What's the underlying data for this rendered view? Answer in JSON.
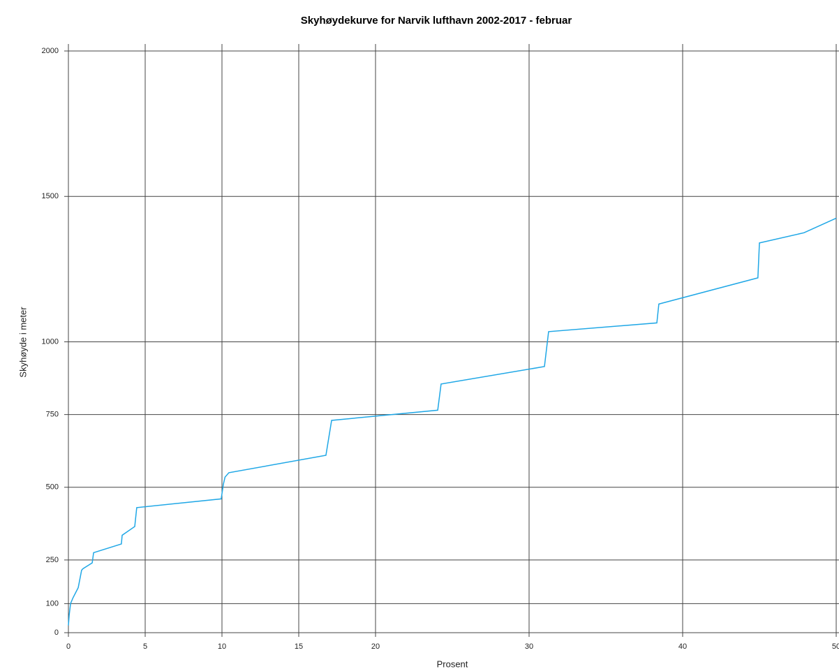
{
  "chart_data": {
    "type": "line",
    "title": "Skyhøydekurve for Narvik lufthavn 2002-2017 - februar",
    "x_label": "Prosent",
    "y_label": "Skyhøyde i meter",
    "xlim": [
      0,
      50
    ],
    "ylim": [
      0,
      2000
    ],
    "xticks": [
      0,
      5,
      10,
      15,
      20,
      30,
      40,
      50
    ],
    "yticks": [
      0,
      100,
      250,
      500,
      750,
      1000,
      1500,
      2000
    ],
    "grid": true,
    "series": [
      {
        "color": "#1fa7e6",
        "x": [
          0,
          0.05,
          0.14,
          0.3,
          0.64,
          0.86,
          0.95,
          1.55,
          1.64,
          3.45,
          3.5,
          4.32,
          4.45,
          9.95,
          10.09,
          10.2,
          10.45,
          16.77,
          17.14,
          24.05,
          24.27,
          31.0,
          31.27,
          38.32,
          38.45,
          44.9,
          45.0,
          47.9,
          50
        ],
        "values": [
          25,
          60,
          100,
          120,
          155,
          215,
          220,
          240,
          275,
          305,
          335,
          365,
          430,
          460,
          510,
          535,
          550,
          610,
          730,
          765,
          855,
          915,
          1035,
          1065,
          1130,
          1220,
          1340,
          1375,
          1425
        ]
      }
    ]
  }
}
